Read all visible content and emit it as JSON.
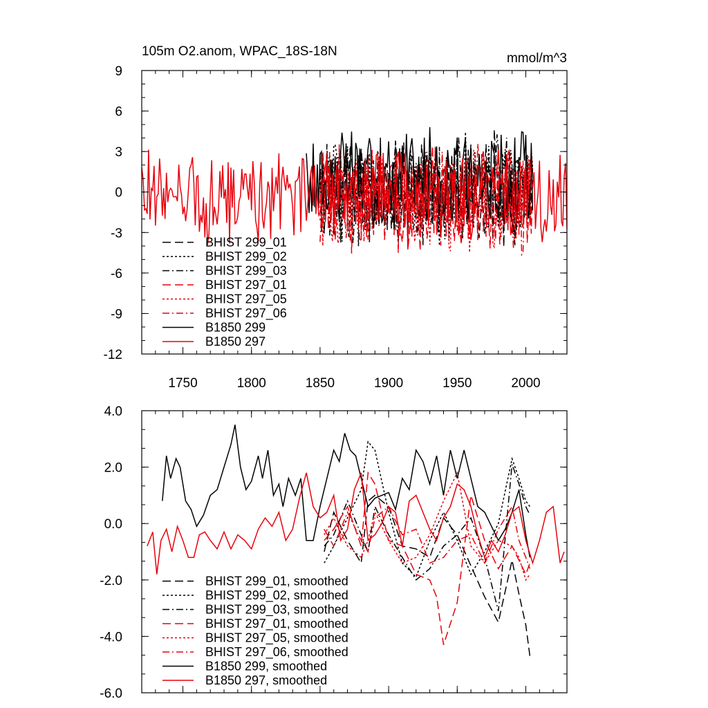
{
  "chart_data": [
    {
      "type": "line",
      "title": "105m O2.anom, WPAC_18S-18N",
      "units_label": "mmol/m^3",
      "xlabel": "",
      "ylabel": "",
      "xlim": [
        1720,
        2030
      ],
      "ylim": [
        -12,
        9
      ],
      "x_ticks": [
        1750,
        1800,
        1850,
        1900,
        1950,
        2000
      ],
      "x_tick_labels": [
        "1750",
        "1800",
        "1850",
        "1900",
        "1950",
        "2000"
      ],
      "y_ticks": [
        -12,
        -9,
        -6,
        -3,
        0,
        3,
        6,
        9
      ],
      "y_tick_labels": [
        "-12",
        "-9",
        "-6",
        "-3",
        "0",
        "3",
        "6",
        "9"
      ],
      "legend_position": "bottom-left",
      "series": [
        {
          "name": "BHIST 299_01",
          "color": "#000000",
          "dash": "long-dash",
          "x_range": [
            1850,
            2005
          ],
          "mean": 0.3,
          "amplitude": 3.4,
          "seed": 11
        },
        {
          "name": "BHIST 299_02",
          "color": "#000000",
          "dash": "dot",
          "x_range": [
            1850,
            2005
          ],
          "mean": 0.2,
          "amplitude": 3.4,
          "seed": 12
        },
        {
          "name": "BHIST 299_03",
          "color": "#000000",
          "dash": "dash-dot",
          "x_range": [
            1850,
            2005
          ],
          "mean": 0.1,
          "amplitude": 3.4,
          "seed": 13
        },
        {
          "name": "BHIST 297_01",
          "color": "#e8000b",
          "dash": "long-dash",
          "x_range": [
            1850,
            2005
          ],
          "mean": -0.6,
          "amplitude": 3.3,
          "seed": 14
        },
        {
          "name": "BHIST 297_05",
          "color": "#e8000b",
          "dash": "dot",
          "x_range": [
            1850,
            2005
          ],
          "mean": -0.4,
          "amplitude": 3.3,
          "seed": 15
        },
        {
          "name": "BHIST 297_06",
          "color": "#e8000b",
          "dash": "dash-dot",
          "x_range": [
            1850,
            2005
          ],
          "mean": -0.5,
          "amplitude": 3.3,
          "seed": 16
        },
        {
          "name": "B1850 299",
          "color": "#000000",
          "dash": "solid",
          "x_range": [
            1840,
            2005
          ],
          "mean": 1.0,
          "amplitude": 3.2,
          "seed": 17
        },
        {
          "name": "B1850 297",
          "color": "#e8000b",
          "dash": "solid",
          "x_range": [
            1720,
            2030
          ],
          "mean": -0.3,
          "amplitude": 2.9,
          "seed": 18
        }
      ]
    },
    {
      "type": "line",
      "title": "",
      "xlabel": "",
      "ylabel": "",
      "xlim": [
        1720,
        2030
      ],
      "ylim": [
        -6.0,
        4.0
      ],
      "x_ticks": [
        1750,
        1800,
        1850,
        1900,
        1950,
        2000
      ],
      "y_ticks": [
        -6.0,
        -4.0,
        -2.0,
        0.0,
        2.0,
        4.0
      ],
      "y_tick_labels": [
        "-6.0",
        "-4.0",
        "-2.0",
        "0.0",
        "2.0",
        "4.0"
      ],
      "legend_position": "bottom-left",
      "series": [
        {
          "name": "BHIST 299_01, smoothed",
          "color": "#000000",
          "dash": "long-dash",
          "x": [
            1853,
            1860,
            1870,
            1880,
            1885,
            1890,
            1900,
            1910,
            1920,
            1930,
            1940,
            1950,
            1960,
            1970,
            1980,
            1990,
            1995,
            2000,
            2003
          ],
          "y": [
            -1.0,
            0.4,
            -0.6,
            -1.4,
            0.8,
            1.0,
            0.6,
            -0.8,
            -0.9,
            -1.2,
            0.2,
            -0.4,
            -1.5,
            -2.6,
            -3.5,
            -1.3,
            -2.5,
            -3.6,
            -4.7
          ]
        },
        {
          "name": "BHIST 299_02, smoothed",
          "color": "#000000",
          "dash": "dot",
          "x": [
            1853,
            1860,
            1870,
            1880,
            1885,
            1890,
            1900,
            1910,
            1920,
            1930,
            1940,
            1950,
            1960,
            1970,
            1980,
            1990,
            1995,
            2000,
            2003
          ],
          "y": [
            -1.4,
            -0.8,
            0.2,
            1.2,
            2.9,
            2.6,
            0.4,
            -1.4,
            -1.9,
            -0.6,
            0.4,
            -0.6,
            -1.8,
            -1.0,
            0.0,
            2.3,
            1.6,
            0.8,
            0.6
          ]
        },
        {
          "name": "BHIST 299_03, smoothed",
          "color": "#000000",
          "dash": "dash-dot",
          "x": [
            1853,
            1860,
            1870,
            1880,
            1885,
            1890,
            1900,
            1910,
            1920,
            1930,
            1940,
            1950,
            1960,
            1970,
            1980,
            1990,
            1995,
            2000,
            2003
          ],
          "y": [
            -0.8,
            -0.4,
            0.8,
            -0.4,
            -1.0,
            0.6,
            -0.4,
            -1.2,
            -2.0,
            -1.6,
            -0.8,
            -0.4,
            0.2,
            -1.2,
            -3.1,
            2.1,
            1.4,
            0.6,
            0.3
          ]
        },
        {
          "name": "BHIST 297_01, smoothed",
          "color": "#e8000b",
          "dash": "long-dash",
          "x": [
            1853,
            1860,
            1870,
            1880,
            1885,
            1890,
            1900,
            1910,
            1920,
            1930,
            1935,
            1940,
            1950,
            1960,
            1970,
            1980,
            1990,
            2000,
            2003
          ],
          "y": [
            -0.6,
            -0.2,
            0.6,
            -0.8,
            1.8,
            1.4,
            -0.6,
            -0.8,
            -1.8,
            -2.0,
            -2.6,
            -4.3,
            -2.8,
            1.0,
            -0.6,
            -1.6,
            -0.8,
            -1.8,
            -1.4
          ]
        },
        {
          "name": "BHIST 297_05, smoothed",
          "color": "#e8000b",
          "dash": "dot",
          "x": [
            1853,
            1860,
            1870,
            1880,
            1885,
            1890,
            1900,
            1910,
            1920,
            1930,
            1940,
            1950,
            1960,
            1970,
            1980,
            1990,
            1995,
            2000,
            2003
          ],
          "y": [
            -0.4,
            0.2,
            -0.8,
            -1.2,
            -0.6,
            0.4,
            -0.6,
            -1.4,
            -1.2,
            -0.4,
            0.8,
            1.8,
            -0.8,
            -1.4,
            -0.6,
            -0.8,
            -1.2,
            -2.0,
            -1.8
          ]
        },
        {
          "name": "BHIST 297_06, smoothed",
          "color": "#e8000b",
          "dash": "dash-dot",
          "x": [
            1853,
            1860,
            1870,
            1880,
            1885,
            1890,
            1900,
            1910,
            1920,
            1930,
            1940,
            1950,
            1960,
            1970,
            1980,
            1990,
            1995,
            2000,
            2003
          ],
          "y": [
            -0.2,
            -0.8,
            0.4,
            -0.6,
            -1.0,
            0.2,
            0.6,
            -0.4,
            -0.2,
            -1.4,
            -1.2,
            -0.6,
            -0.4,
            -1.4,
            -0.2,
            0.6,
            -0.6,
            -1.2,
            -1.6
          ]
        },
        {
          "name": "B1850 299, smoothed",
          "color": "#000000",
          "dash": "solid",
          "x": [
            1735,
            1738,
            1741,
            1745,
            1748,
            1752,
            1756,
            1760,
            1765,
            1770,
            1775,
            1780,
            1785,
            1788,
            1792,
            1796,
            1800,
            1805,
            1808,
            1812,
            1816,
            1820,
            1823,
            1827,
            1832,
            1836,
            1840,
            1845,
            1850,
            1855,
            1860,
            1864,
            1868,
            1872,
            1876,
            1880,
            1885,
            1890,
            1895,
            1900,
            1905,
            1910,
            1915,
            1920,
            1925,
            1930,
            1935,
            1940,
            1945,
            1950,
            1955,
            1960,
            1965,
            1970,
            1975,
            1980,
            1985,
            1990,
            1995,
            2000,
            2003
          ],
          "y": [
            0.8,
            2.4,
            1.6,
            2.3,
            2.0,
            0.8,
            0.5,
            -0.1,
            0.3,
            1.0,
            1.2,
            2.0,
            2.8,
            3.5,
            2.0,
            1.2,
            1.5,
            2.4,
            1.6,
            2.6,
            1.0,
            1.4,
            0.6,
            1.6,
            1.0,
            1.6,
            -0.6,
            -0.6,
            0.6,
            1.6,
            2.6,
            2.2,
            3.2,
            2.6,
            2.4,
            1.6,
            0.6,
            0.9,
            1.0,
            1.1,
            0.5,
            1.6,
            1.2,
            2.6,
            2.2,
            1.4,
            2.4,
            1.0,
            2.6,
            1.6,
            2.6,
            1.6,
            0.6,
            0.4,
            -0.1,
            -0.6,
            -0.2,
            0.4,
            1.2,
            -0.4,
            -1.2
          ]
        },
        {
          "name": "B1850 297, smoothed",
          "color": "#e8000b",
          "dash": "solid",
          "x": [
            1724,
            1728,
            1731,
            1734,
            1738,
            1742,
            1746,
            1750,
            1754,
            1758,
            1762,
            1766,
            1770,
            1775,
            1780,
            1785,
            1790,
            1795,
            1800,
            1805,
            1810,
            1815,
            1820,
            1825,
            1830,
            1835,
            1840,
            1845,
            1850,
            1855,
            1860,
            1865,
            1870,
            1875,
            1880,
            1885,
            1890,
            1895,
            1900,
            1905,
            1910,
            1915,
            1920,
            1925,
            1930,
            1935,
            1940,
            1945,
            1950,
            1955,
            1960,
            1965,
            1970,
            1975,
            1980,
            1985,
            1990,
            1995,
            2000,
            2005,
            2010,
            2015,
            2020,
            2025,
            2028
          ],
          "y": [
            -0.8,
            -0.3,
            -1.8,
            -0.6,
            -0.2,
            -1.0,
            -0.1,
            -0.6,
            -1.2,
            -1.2,
            -0.4,
            -0.3,
            -0.6,
            -0.9,
            -0.3,
            -0.9,
            -0.4,
            -0.6,
            -0.9,
            -0.2,
            0.2,
            -0.1,
            0.4,
            -0.6,
            -0.2,
            0.9,
            1.8,
            0.6,
            0.2,
            0.4,
            1.0,
            -0.6,
            -0.2,
            1.2,
            1.8,
            -0.6,
            -0.4,
            0.0,
            0.6,
            0.4,
            -0.8,
            0.8,
            1.0,
            0.4,
            -0.2,
            -0.6,
            0.2,
            0.6,
            1.4,
            1.2,
            0.6,
            -0.4,
            -1.2,
            -0.6,
            -1.0,
            -0.4,
            0.4,
            0.6,
            -0.6,
            -1.4,
            -0.6,
            0.4,
            0.6,
            -1.4,
            -1.0
          ]
        }
      ]
    }
  ]
}
